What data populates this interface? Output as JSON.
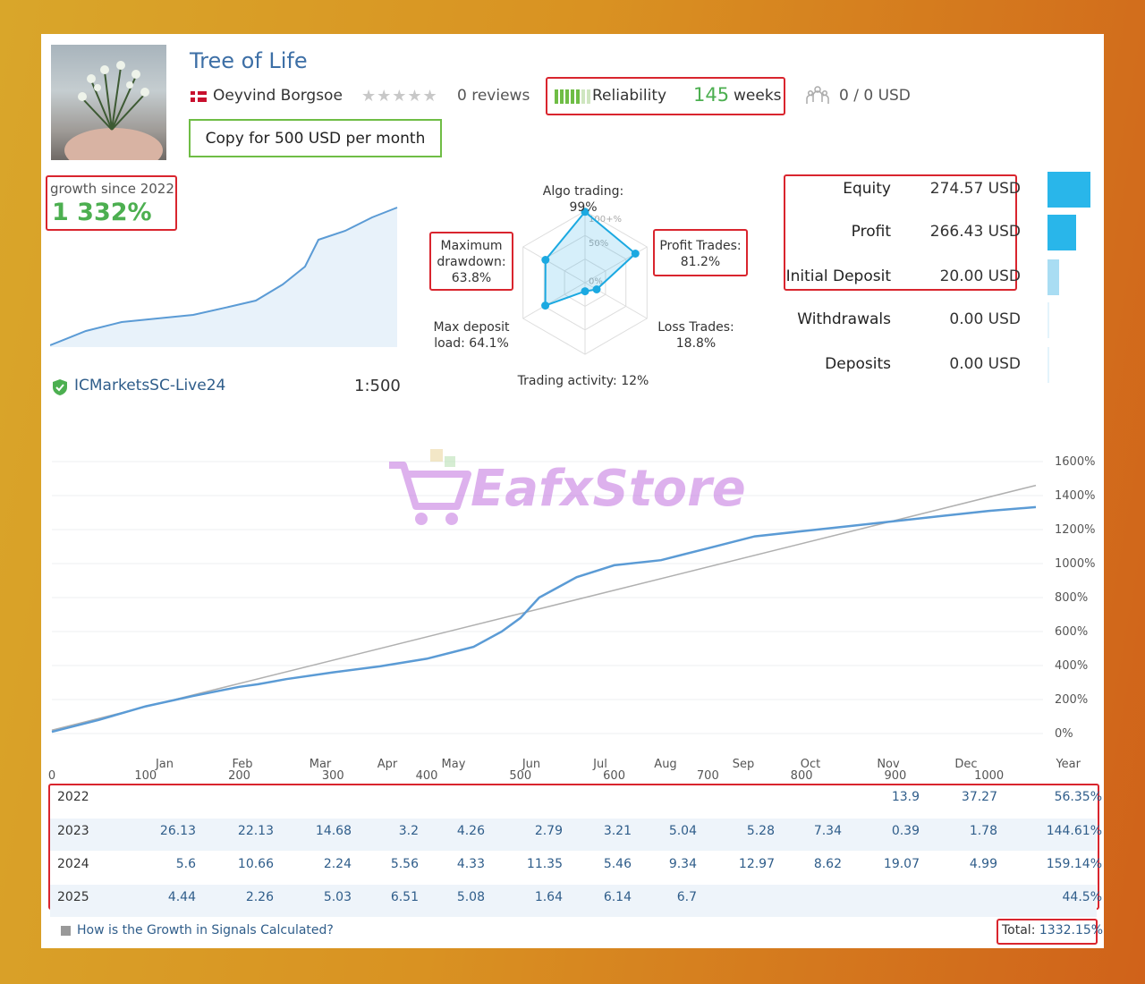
{
  "header": {
    "title": "Tree of Life",
    "author": "Oeyvind Borgsoe",
    "reviews": "0 reviews",
    "reliability_label": "Reliability",
    "weeks_value": "145",
    "weeks_label": "weeks",
    "subscribers": "0 / 0 USD",
    "copy_button": "Copy for 500 USD per month"
  },
  "growth": {
    "label": "growth since 2022",
    "value": "1 332%"
  },
  "broker": {
    "name": "ICMarketsSC-Live24",
    "leverage": "1:500"
  },
  "radar": {
    "algo_trading": "Algo trading: 99%",
    "profit_trades_label": "Profit Trades:",
    "profit_trades_value": "81.2%",
    "loss_trades_label": "Loss Trades:",
    "loss_trades_value": "18.8%",
    "trading_activity": "Trading activity: 12%",
    "max_deposit_label": "Max deposit",
    "max_deposit_value": "load: 64.1%",
    "max_drawdown_line1": "Maximum",
    "max_drawdown_line2": "drawdown:",
    "max_drawdown_value": "63.8%",
    "ring_labels": [
      "100+%",
      "50%",
      "0%"
    ],
    "values": {
      "algo": 99,
      "profit": 81.2,
      "loss": 18.8,
      "activity": 12,
      "deposit_load": 64.1,
      "drawdown": 63.8
    }
  },
  "stats": [
    {
      "label": "Equity",
      "value": "274.57 USD",
      "bar_fraction": 1.0
    },
    {
      "label": "Profit",
      "value": "266.43 USD",
      "bar_fraction": 0.66
    },
    {
      "label": "Initial Deposit",
      "value": "20.00 USD",
      "bar_fraction": 0.27
    },
    {
      "label": "Withdrawals",
      "value": "0.00 USD",
      "bar_fraction": 0.0
    },
    {
      "label": "Deposits",
      "value": "0.00 USD",
      "bar_fraction": 0.0
    }
  ],
  "watermark": "EafxStore",
  "chart_data": {
    "type": "line",
    "y_ticks": [
      "1600%",
      "1400%",
      "1200%",
      "1000%",
      "800%",
      "600%",
      "400%",
      "200%",
      "0%"
    ],
    "x_ticks": [
      "0",
      "100",
      "200",
      "300",
      "400",
      "500",
      "600",
      "700",
      "800",
      "900",
      "1000"
    ],
    "ylim": [
      0,
      1600
    ],
    "xlim": [
      0,
      1050
    ],
    "series": [
      {
        "x": [
          0,
          50,
          100,
          150,
          200,
          220,
          250,
          300,
          350,
          400,
          450,
          480,
          500,
          520,
          540,
          560,
          600,
          650,
          700,
          750,
          800,
          850,
          900,
          950,
          1000,
          1050
        ],
        "y": [
          10,
          80,
          160,
          220,
          275,
          290,
          320,
          360,
          395,
          440,
          510,
          600,
          680,
          800,
          860,
          920,
          990,
          1020,
          1090,
          1160,
          1190,
          1220,
          1250,
          1280,
          1310,
          1332
        ]
      },
      {
        "x": [
          0,
          1050
        ],
        "y": [
          20,
          1460
        ]
      }
    ]
  },
  "table": {
    "months": [
      "Jan",
      "Feb",
      "Mar",
      "Apr",
      "May",
      "Jun",
      "Jul",
      "Aug",
      "Sep",
      "Oct",
      "Nov",
      "Dec",
      "Year"
    ],
    "rows": [
      {
        "year": "2022",
        "values": [
          "",
          "",
          "",
          "",
          "",
          "",
          "",
          "",
          "",
          "",
          "13.9",
          "37.27",
          "56.35%"
        ]
      },
      {
        "year": "2023",
        "values": [
          "26.13",
          "22.13",
          "14.68",
          "3.2",
          "4.26",
          "2.79",
          "3.21",
          "5.04",
          "5.28",
          "7.34",
          "0.39",
          "1.78",
          "144.61%"
        ]
      },
      {
        "year": "2024",
        "values": [
          "5.6",
          "10.66",
          "2.24",
          "5.56",
          "4.33",
          "11.35",
          "5.46",
          "9.34",
          "12.97",
          "8.62",
          "19.07",
          "4.99",
          "159.14%"
        ]
      },
      {
        "year": "2025",
        "values": [
          "4.44",
          "2.26",
          "5.03",
          "6.51",
          "5.08",
          "1.64",
          "6.14",
          "6.7",
          "",
          "",
          "",
          "",
          "44.5%"
        ]
      }
    ]
  },
  "footer": {
    "link": "How is the Growth in Signals Calculated?",
    "total_label": "Total:",
    "total_value": "1332.15%"
  },
  "colors": {
    "accent_green": "#4caf50",
    "link_blue": "#2f5d8a",
    "chart_line": "#5b9bd5",
    "radar_cyan": "#1ba9e1",
    "highlight_red": "#d9252e"
  }
}
